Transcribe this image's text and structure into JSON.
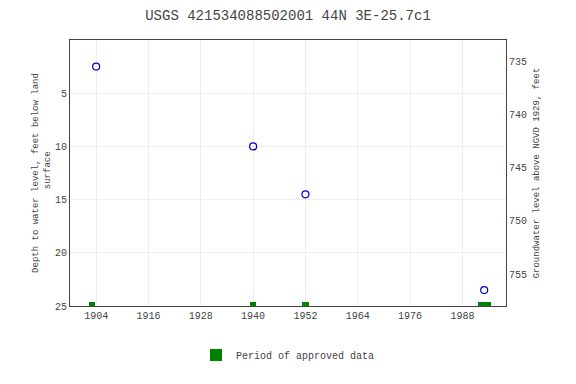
{
  "chart_data": {
    "type": "scatter",
    "title": "USGS 421534088502001 44N 3E-25.7c1",
    "y_label": "Depth to water level, feet below land\n surface",
    "y2_label": "Groundwater level above NGVD 1929, feet",
    "series": [
      {
        "type": "scatter",
        "marker": "circle-open",
        "color": "#0000cc",
        "x": [
          1904,
          1940,
          1952,
          1993
        ],
        "values": [
          2.5,
          10.0,
          14.5,
          23.5
        ]
      },
      {
        "type": "bar",
        "name": "Period of approved data",
        "color": "#008000",
        "x": [
          1903,
          1940,
          1952,
          1993
        ],
        "widths": [
          1.5,
          1.5,
          1.5,
          3.0
        ]
      }
    ],
    "xlim": [
      1898,
      1998
    ],
    "xticks": [
      1904,
      1916,
      1928,
      1940,
      1952,
      1964,
      1976,
      1988
    ],
    "ylim": [
      25,
      0
    ],
    "yticks": [
      5,
      10,
      15,
      20,
      25
    ],
    "y2lim": [
      758,
      733
    ],
    "y2ticks": [
      755,
      750,
      745,
      740,
      735
    ],
    "grid": true,
    "legend": "bottom"
  }
}
